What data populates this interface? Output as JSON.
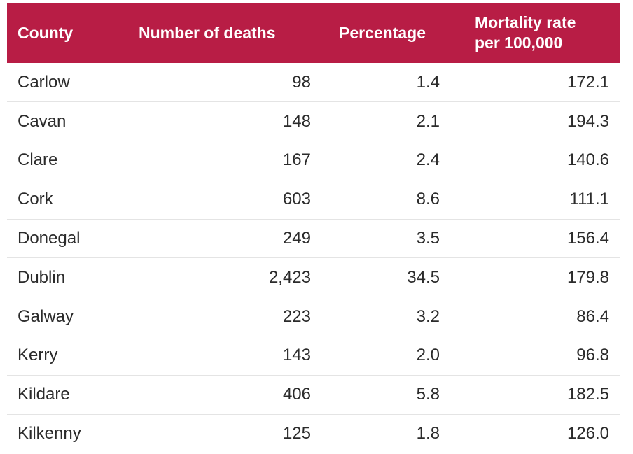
{
  "table": {
    "header_color": "#b81d45",
    "headers": {
      "county": "County",
      "deaths": "Number of deaths",
      "percentage": "Percentage",
      "rate_line1": "Mortality rate",
      "rate_line2": "per 100,000"
    },
    "rows": [
      {
        "county": "Carlow",
        "deaths": "98",
        "percentage": "1.4",
        "rate": "172.1"
      },
      {
        "county": "Cavan",
        "deaths": "148",
        "percentage": "2.1",
        "rate": "194.3"
      },
      {
        "county": "Clare",
        "deaths": "167",
        "percentage": "2.4",
        "rate": "140.6"
      },
      {
        "county": "Cork",
        "deaths": "603",
        "percentage": "8.6",
        "rate": "111.1"
      },
      {
        "county": "Donegal",
        "deaths": "249",
        "percentage": "3.5",
        "rate": "156.4"
      },
      {
        "county": "Dublin",
        "deaths": "2,423",
        "percentage": "34.5",
        "rate": "179.8"
      },
      {
        "county": "Galway",
        "deaths": "223",
        "percentage": "3.2",
        "rate": "86.4"
      },
      {
        "county": "Kerry",
        "deaths": "143",
        "percentage": "2.0",
        "rate": "96.8"
      },
      {
        "county": "Kildare",
        "deaths": "406",
        "percentage": "5.8",
        "rate": "182.5"
      },
      {
        "county": "Kilkenny",
        "deaths": "125",
        "percentage": "1.8",
        "rate": "126.0"
      }
    ]
  }
}
